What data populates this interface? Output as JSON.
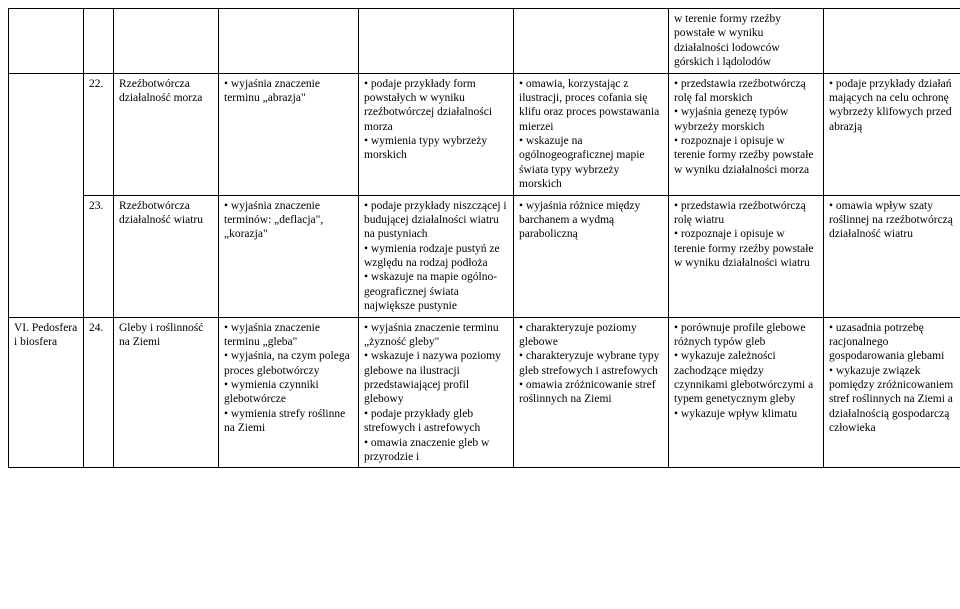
{
  "rows": [
    {
      "section": "",
      "num": "",
      "title": "",
      "c1": "",
      "c2": "",
      "c3": "",
      "c4": "w terenie formy rzeźby powstałe w wyniku działalności lodowców górskich i lądolodów",
      "c5": ""
    },
    {
      "section": "",
      "num": "22.",
      "title": "Rzeźbotwórcza działalność morza",
      "c1": "• wyjaśnia znaczenie terminu „abrazja\"",
      "c2": "• podaje przykłady form powstałych w wyniku rzeźbotwórczej działalności morza\n• wymienia typy wybrzeży morskich",
      "c3": "• omawia, korzystając z ilustracji, proces cofania się klifu oraz proces powstawania mierzei\n• wskazuje na ogólnogeograficznej mapie świata typy wybrzeży morskich",
      "c4": "• przedstawia rzeźbotwórczą rolę fal morskich\n• wyjaśnia genezę typów wybrzeży morskich\n• rozpoznaje i opisuje w terenie formy rzeźby powstałe w wyniku działalności morza",
      "c5": "• podaje przykłady działań mających na celu ochronę wybrzeży klifowych przed abrazją"
    },
    {
      "section": "",
      "num": "23.",
      "title": "Rzeźbotwórcza działalność wiatru",
      "c1": "• wyjaśnia znaczenie terminów: „deflacja\", „korazja\"",
      "c2": "• podaje przykłady niszczącej i budującej działalności wiatru na pustyniach\n• wymienia rodzaje pustyń ze względu na rodzaj podłoża\n• wskazuje na mapie ogólno-geograficznej świata największe pustynie",
      "c3": "• wyjaśnia różnice między barchanem a wydmą paraboliczną",
      "c4": "• przedstawia rzeźbotwórczą rolę wiatru\n• rozpoznaje i opisuje w terenie formy rzeźby powstałe w wyniku działalności wiatru",
      "c5": "• omawia wpływ szaty roślinnej na rzeźbotwórczą działalność wiatru"
    },
    {
      "section": "VI. Pedosfera i biosfera",
      "num": "24.",
      "title": "Gleby i roślinność na Ziemi",
      "c1": "• wyjaśnia znaczenie terminu „gleba\"\n• wyjaśnia, na czym polega proces glebotwórczy\n• wymienia czynniki glebotwórcze\n• wymienia strefy roślinne na Ziemi",
      "c2": "• wyjaśnia znaczenie terminu „żyzność gleby\"\n• wskazuje i nazywa poziomy glebowe na ilustracji przedstawiającej profil glebowy\n• podaje przykłady gleb strefowych i astrefowych\n• omawia znaczenie gleb w przyrodzie i",
      "c3": "• charakteryzuje poziomy glebowe\n• charakteryzuje wybrane typy gleb strefowych i astrefowych\n• omawia zróżnicowanie stref roślinnych na Ziemi",
      "c4": "• porównuje profile glebowe różnych typów gleb\n• wykazuje zależności zachodzące między czynnikami glebotwórczymi a typem genetycznym gleby\n• wykazuje wpływ klimatu",
      "c5": "• uzasadnia potrzebę racjonalnego gospodarowania glebami\n• wykazuje związek pomiędzy zróżnicowaniem stref roślinnych na Ziemi a działalnością gospodarczą człowieka"
    }
  ]
}
